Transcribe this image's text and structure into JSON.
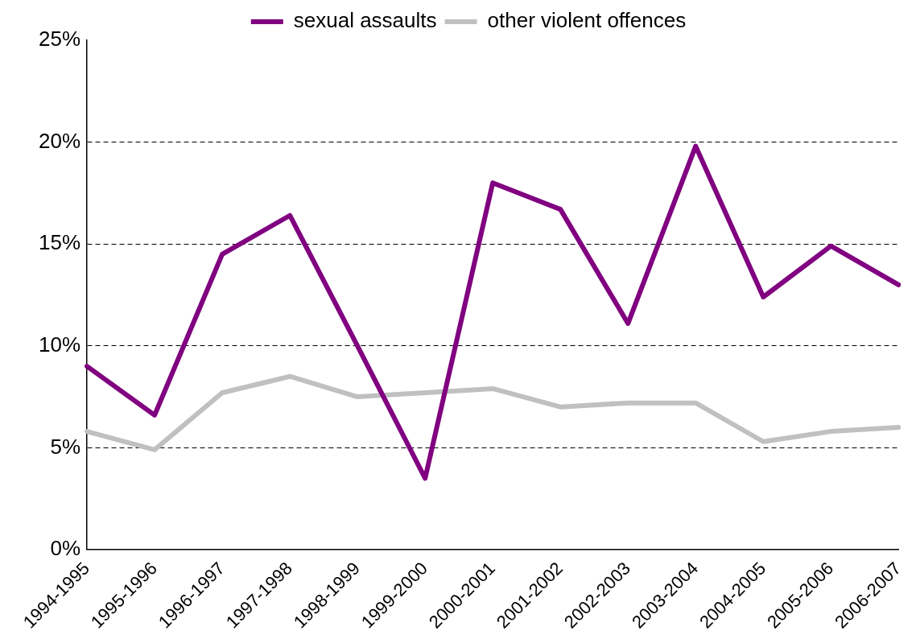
{
  "chart_data": {
    "type": "line",
    "categories": [
      "1994-1995",
      "1995-1996",
      "1996-1997",
      "1997-1998",
      "1998-1999",
      "1999-2000",
      "2000-2001",
      "2001-2002",
      "2002-2003",
      "2003-2004",
      "2004-2005",
      "2005-2006",
      "2006-2007"
    ],
    "series": [
      {
        "name": "sexual assaults",
        "color": "#800080",
        "values": [
          9.0,
          6.6,
          14.5,
          16.4,
          10.0,
          3.5,
          18.0,
          16.7,
          11.1,
          19.8,
          12.4,
          14.9,
          13.0
        ]
      },
      {
        "name": "other violent offences",
        "color": "#c0c0c0",
        "values": [
          5.8,
          4.9,
          7.7,
          8.5,
          7.5,
          7.7,
          7.9,
          7.0,
          7.2,
          7.2,
          5.3,
          5.8,
          6.0
        ]
      }
    ],
    "ylim": [
      0,
      25
    ],
    "yticks": [
      {
        "value": 0,
        "label": "0%"
      },
      {
        "value": 5,
        "label": "5%"
      },
      {
        "value": 10,
        "label": "10%"
      },
      {
        "value": 15,
        "label": "15%"
      },
      {
        "value": 20,
        "label": "20%"
      },
      {
        "value": 25,
        "label": "25%"
      }
    ],
    "grid": "y",
    "legend": "top",
    "marker": "none",
    "line_style": "solid"
  }
}
